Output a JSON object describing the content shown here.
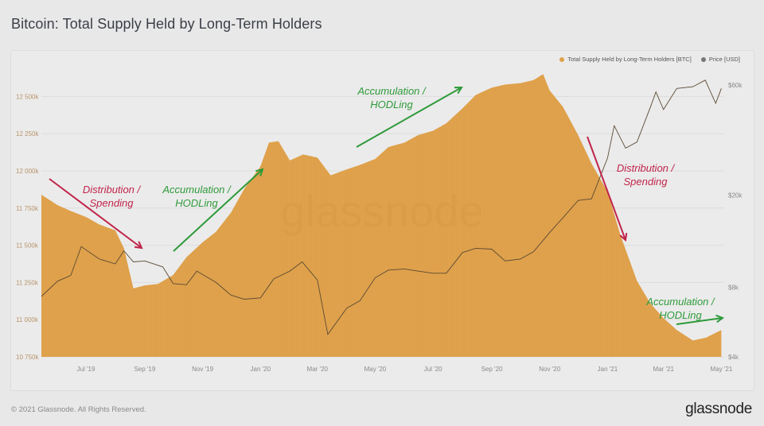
{
  "header": {
    "title": "Bitcoin: Total Supply Held by Long-Term Holders"
  },
  "legend": [
    {
      "label": "Total Supply Held by Long-Term Holders [BTC]",
      "color": "#e0a24c"
    },
    {
      "label": "Price [USD]",
      "color": "#777777"
    }
  ],
  "footer": {
    "copyright": "© 2021 Glassnode. All Rights Reserved.",
    "brand": "glassnode"
  },
  "watermark": "glassnode",
  "annotations": [
    {
      "text": "Distribution /\nSpending",
      "color": "#c0244a",
      "arrow": "down"
    },
    {
      "text": "Accumulation /\nHODLing",
      "color": "#2e9a3a",
      "arrow": "up"
    },
    {
      "text": "Accumulation /\nHODLing",
      "color": "#2e9a3a",
      "arrow": "up"
    },
    {
      "text": "Distribution /\nSpending",
      "color": "#c0244a",
      "arrow": "down"
    },
    {
      "text": "Accumulation /\nHODLing",
      "color": "#2e9a3a",
      "arrow": "up"
    }
  ],
  "chart_data": {
    "type": "area",
    "title": "Bitcoin: Total Supply Held by Long-Term Holders",
    "xlabel": "",
    "ylabel_left": "Total Supply Held by Long-Term Holders [BTC]",
    "ylabel_right": "Price [USD] (log scale)",
    "x_ticks": [
      "Jul '19",
      "Sep '19",
      "Nov '19",
      "Jan '20",
      "Mar '20",
      "May '20",
      "Jul '20",
      "Sep '20",
      "Nov '20",
      "Jan '21",
      "Mar '21",
      "May '21"
    ],
    "y_left_ticks": [
      "12 500k",
      "12 250k",
      "12 000k",
      "11 750k",
      "11 500k",
      "11 250k",
      "11 000k",
      "10 750k"
    ],
    "y_right_ticks": [
      "$60k",
      "$20k",
      "$8k",
      "$4k"
    ],
    "ylim_left": [
      10750000,
      12650000
    ],
    "ylim_right": [
      4000,
      65000
    ],
    "grid": true,
    "legend_position": "top-right",
    "series": [
      {
        "name": "Total Supply Held by Long-Term Holders [BTC]",
        "type": "area",
        "color": "#e0a24c",
        "x": [
          "2019-05-15",
          "2019-06-01",
          "2019-06-15",
          "2019-07-01",
          "2019-07-15",
          "2019-08-01",
          "2019-08-10",
          "2019-08-20",
          "2019-09-01",
          "2019-09-15",
          "2019-10-01",
          "2019-10-15",
          "2019-11-01",
          "2019-11-15",
          "2019-12-01",
          "2019-12-15",
          "2020-01-01",
          "2020-01-10",
          "2020-01-20",
          "2020-02-01",
          "2020-02-15",
          "2020-03-01",
          "2020-03-15",
          "2020-04-01",
          "2020-04-15",
          "2020-05-01",
          "2020-05-15",
          "2020-06-01",
          "2020-06-15",
          "2020-07-01",
          "2020-07-15",
          "2020-08-01",
          "2020-08-15",
          "2020-09-01",
          "2020-09-15",
          "2020-10-01",
          "2020-10-15",
          "2020-10-25",
          "2020-11-01",
          "2020-11-15",
          "2020-12-01",
          "2020-12-15",
          "2021-01-01",
          "2021-01-15",
          "2021-02-01",
          "2021-02-15",
          "2021-03-01",
          "2021-03-15",
          "2021-04-01",
          "2021-04-15",
          "2021-05-01"
        ],
        "values": [
          11840000,
          11770000,
          11730000,
          11690000,
          11640000,
          11600000,
          11480000,
          11210000,
          11230000,
          11240000,
          11300000,
          11420000,
          11520000,
          11590000,
          11720000,
          11880000,
          12030000,
          12190000,
          12200000,
          12070000,
          12110000,
          12090000,
          11970000,
          12010000,
          12040000,
          12080000,
          12160000,
          12190000,
          12240000,
          12270000,
          12320000,
          12420000,
          12510000,
          12560000,
          12580000,
          12590000,
          12610000,
          12650000,
          12540000,
          12430000,
          12240000,
          12050000,
          11860000,
          11560000,
          11260000,
          11110000,
          11010000,
          10930000,
          10860000,
          10880000,
          10930000
        ]
      },
      {
        "name": "Price [USD]",
        "type": "line",
        "color": "#5a5a5a",
        "x": [
          "2019-05-15",
          "2019-06-01",
          "2019-06-15",
          "2019-06-26",
          "2019-07-15",
          "2019-08-01",
          "2019-08-10",
          "2019-08-20",
          "2019-09-01",
          "2019-09-20",
          "2019-10-01",
          "2019-10-15",
          "2019-10-26",
          "2019-11-15",
          "2019-12-01",
          "2019-12-15",
          "2020-01-01",
          "2020-01-15",
          "2020-02-01",
          "2020-02-14",
          "2020-03-01",
          "2020-03-12",
          "2020-04-01",
          "2020-04-15",
          "2020-05-01",
          "2020-05-15",
          "2020-06-01",
          "2020-06-15",
          "2020-07-01",
          "2020-07-15",
          "2020-08-01",
          "2020-08-15",
          "2020-09-01",
          "2020-09-15",
          "2020-10-01",
          "2020-10-15",
          "2020-11-01",
          "2020-11-15",
          "2020-12-01",
          "2020-12-15",
          "2021-01-01",
          "2021-01-08",
          "2021-01-20",
          "2021-02-01",
          "2021-02-15",
          "2021-02-21",
          "2021-03-01",
          "2021-03-15",
          "2021-04-01",
          "2021-04-14",
          "2021-04-25",
          "2021-05-01"
        ],
        "values": [
          7300,
          8500,
          9000,
          12000,
          10600,
          10100,
          11500,
          10300,
          10400,
          9800,
          8300,
          8200,
          9400,
          8400,
          7400,
          7100,
          7200,
          8700,
          9400,
          10300,
          8600,
          5000,
          6500,
          7000,
          8800,
          9500,
          9600,
          9400,
          9200,
          9200,
          11300,
          11800,
          11700,
          10400,
          10600,
          11400,
          13800,
          16000,
          19000,
          19300,
          29000,
          40000,
          32000,
          34000,
          48000,
          56000,
          47000,
          58000,
          59000,
          63000,
          50000,
          58000
        ]
      }
    ],
    "annotations": [
      {
        "text": "Distribution / Spending",
        "x_range": [
          "2019-05-15",
          "2019-08-15"
        ],
        "direction": "down"
      },
      {
        "text": "Accumulation / HODLing",
        "x_range": [
          "2019-09-25",
          "2019-12-25"
        ],
        "direction": "up"
      },
      {
        "text": "Accumulation / HODLing",
        "x_range": [
          "2020-04-10",
          "2020-08-25"
        ],
        "direction": "up"
      },
      {
        "text": "Distribution / Spending",
        "x_range": [
          "2020-12-20",
          "2021-01-10"
        ],
        "direction": "down"
      },
      {
        "text": "Accumulation / HODLing",
        "x_range": [
          "2021-03-20",
          "2021-05-01"
        ],
        "direction": "up"
      }
    ]
  }
}
